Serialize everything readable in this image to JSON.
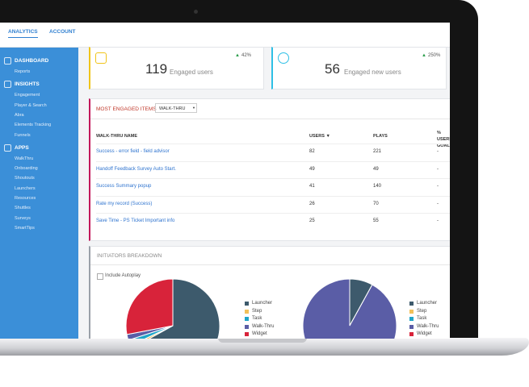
{
  "tabs": [
    "ANALYTICS",
    "ACCOUNT"
  ],
  "sidebar": [
    {
      "title": "DASHBOARD",
      "items": [
        "Reports"
      ]
    },
    {
      "title": "INSIGHTS",
      "items": [
        "Engagement",
        "Player & Search",
        "Abra",
        "Elements Tracking",
        "Funnels"
      ]
    },
    {
      "title": "APPS",
      "items": [
        "WalkThru",
        "Onboarding",
        "Shoutouts",
        "Launchers",
        "Resources",
        "Shuttles",
        "Surveys",
        "SmartTips"
      ]
    }
  ],
  "cards": [
    {
      "value": 119,
      "label": "Engaged users",
      "change": "42%"
    },
    {
      "value": 56,
      "label": "Engaged new users",
      "change": "250%"
    }
  ],
  "table": {
    "title": "MOST ENGAGED ITEMS",
    "filter": "WALK-THRU",
    "columns": [
      "WALK-THRU NAME",
      "USERS ▼",
      "PLAYS",
      "% USERS GOAL"
    ],
    "rows": [
      [
        "Success - error field - field advisor",
        82,
        221,
        "-"
      ],
      [
        "Handoff Feedback Survey Auto Start.",
        49,
        49,
        "-"
      ],
      [
        "Success Summary popup",
        41,
        140,
        "-"
      ],
      [
        "Rate my record (Success)",
        26,
        70,
        "-"
      ],
      [
        "Save Time - PS Ticket Important info",
        25,
        55,
        "-"
      ]
    ]
  },
  "breakdown": {
    "title": "INITIATORS BREAKDOWN",
    "checkbox": "Include Autoplay",
    "charts": [
      {
        "type": "pie",
        "categories": [
          "Launcher",
          "Step",
          "Task",
          "Walk-Thru",
          "Widget"
        ],
        "colors": [
          "#3d5a6c",
          "#f2c15a",
          "#1fa5c8",
          "#5a5da6",
          "#d8233a"
        ],
        "values": [
          67,
          1,
          2,
          2,
          28
        ]
      },
      {
        "type": "pie",
        "categories": [
          "Launcher",
          "Step",
          "Task",
          "Walk-Thru",
          "Widget"
        ],
        "colors": [
          "#3d5a6c",
          "#f2c15a",
          "#1fa5c8",
          "#5a5da6",
          "#d8233a"
        ],
        "values": [
          8,
          0,
          0,
          92,
          0
        ]
      }
    ]
  }
}
